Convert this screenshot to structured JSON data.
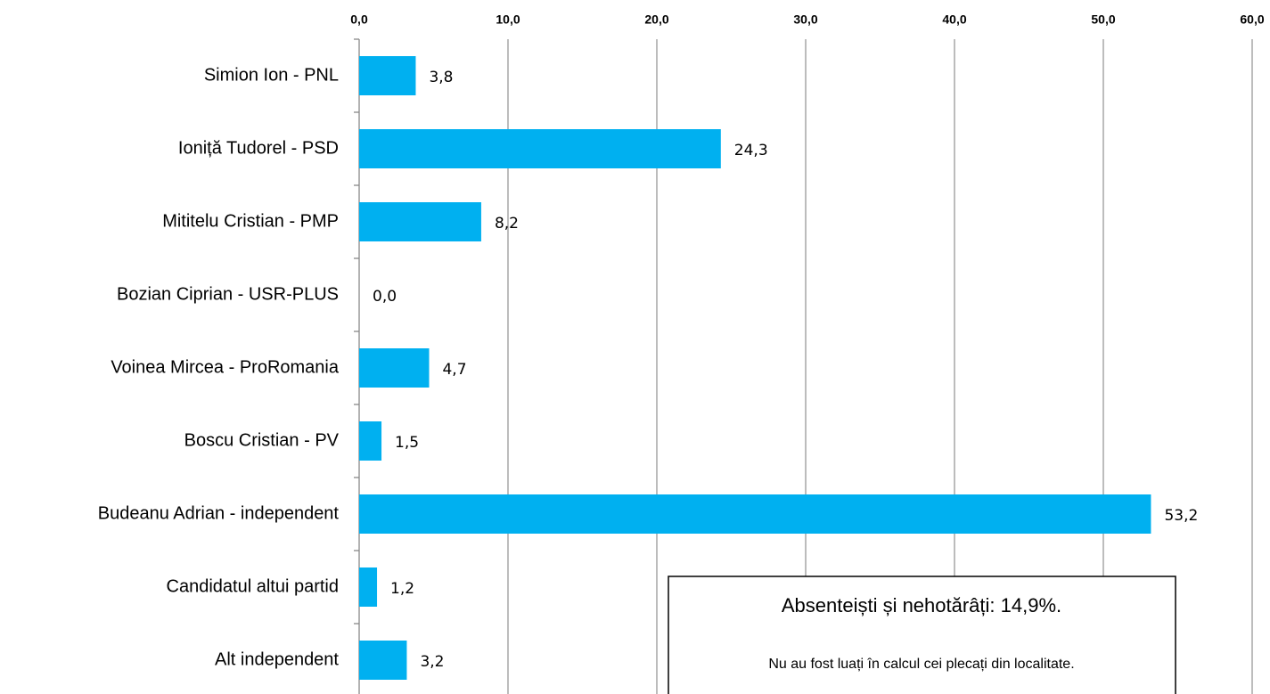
{
  "chart_data": {
    "type": "bar",
    "orientation": "horizontal",
    "categories": [
      "Simion Ion - PNL",
      "Ioniță Tudorel - PSD",
      "Mititelu Cristian - PMP",
      "Bozian Ciprian - USR-PLUS",
      "Voinea Mircea - ProRomania",
      "Boscu Cristian - PV",
      "Budeanu Adrian - independent",
      "Candidatul altui partid",
      "Alt independent"
    ],
    "values": [
      3.8,
      24.3,
      8.2,
      0.0,
      4.7,
      1.5,
      53.2,
      1.2,
      3.2
    ],
    "value_labels": [
      "3,8",
      "24,3",
      "8,2",
      "0,0",
      "4,7",
      "1,5",
      "53,2",
      "1,2",
      "3,2"
    ],
    "color": "#00b0f0",
    "xlim": [
      0,
      60
    ],
    "xticks": [
      {
        "value": 0,
        "label": "0,0"
      },
      {
        "value": 10,
        "label": "10,0"
      },
      {
        "value": 20,
        "label": "20,0"
      },
      {
        "value": 30,
        "label": "30,0"
      },
      {
        "value": 40,
        "label": "40,0"
      },
      {
        "value": 50,
        "label": "50,0"
      },
      {
        "value": 60,
        "label": "60,0"
      }
    ],
    "grid": true,
    "annotations": [
      "Absenteiști și nehotărâți: 14,9%.",
      "Nu au fost luați în calcul cei plecați din localitate."
    ]
  }
}
